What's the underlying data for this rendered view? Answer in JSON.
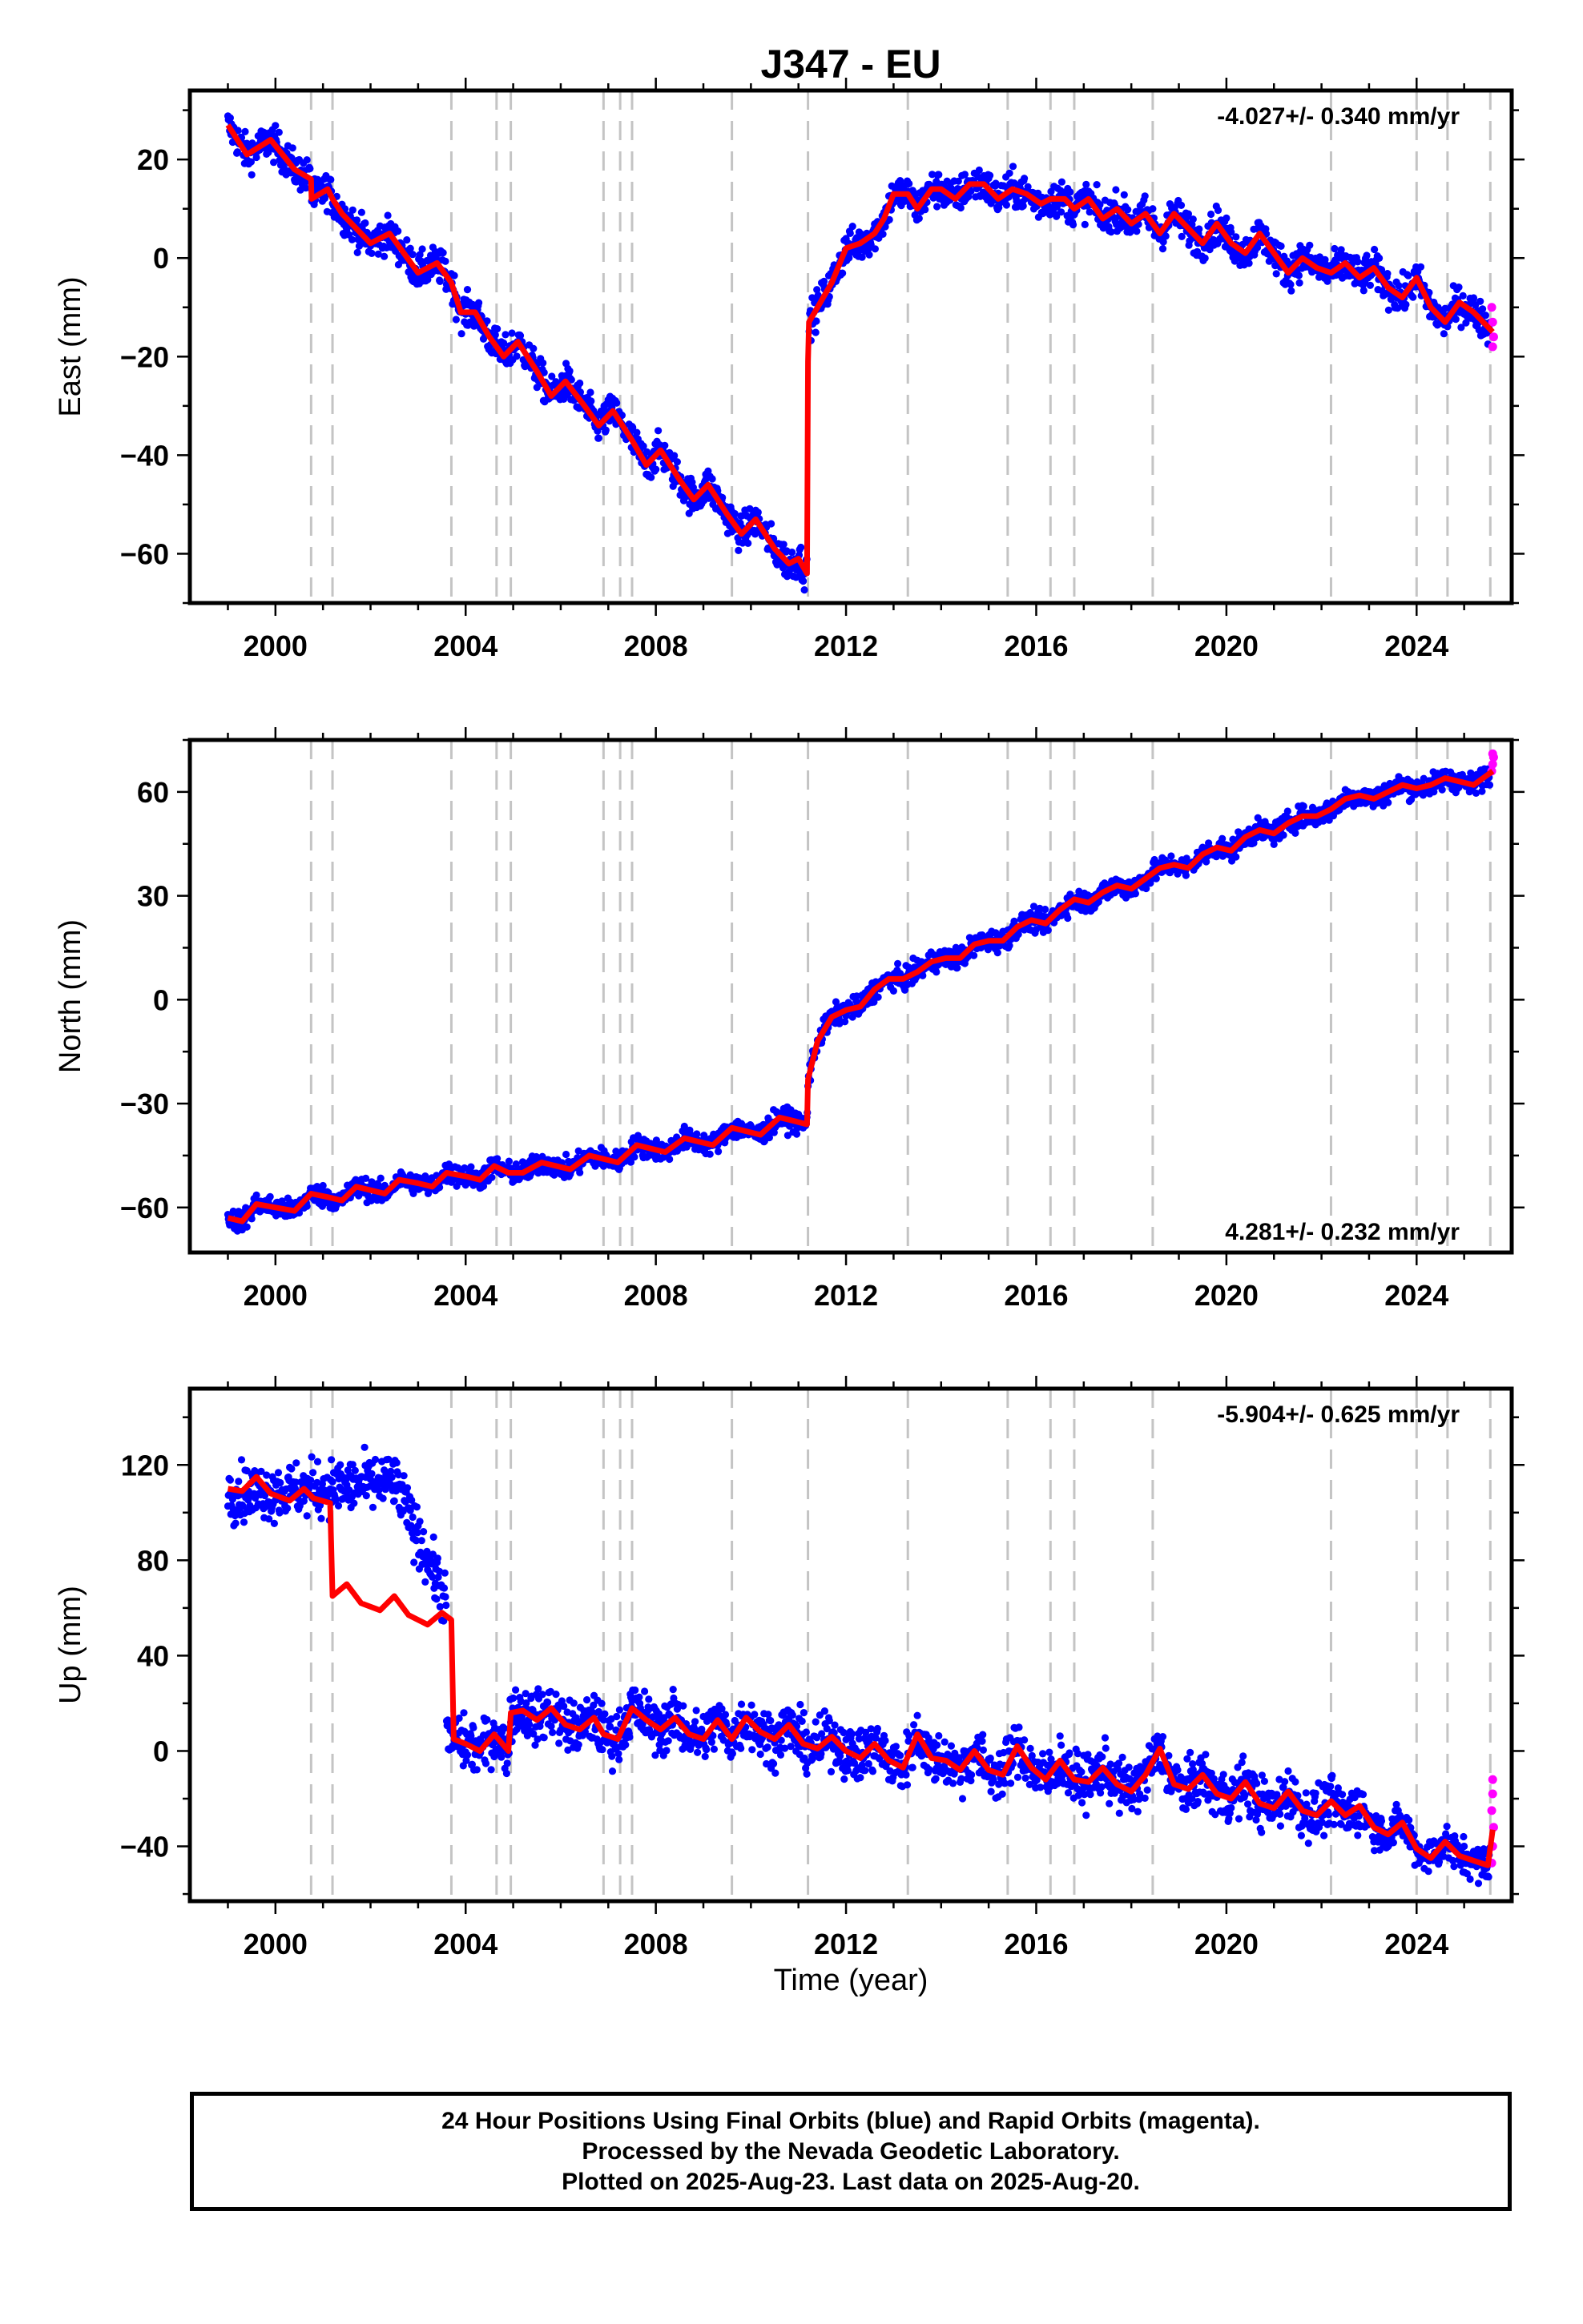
{
  "title": "J347 - EU",
  "caption": [
    "24 Hour Positions Using Final Orbits (blue) and Rapid Orbits (magenta).",
    "Processed by the Nevada Geodetic Laboratory.",
    "Plotted on 2025-Aug-23. Last data on 2025-Aug-20."
  ],
  "colors": {
    "final_orbits": "#0000ff",
    "rapid_orbits": "#ff00ff",
    "model_fit": "#ff0000",
    "equipment_change": "#c4c4c4"
  },
  "x_axis_label": "Time (year)",
  "chart_data": [
    {
      "type": "scatter",
      "name": "east",
      "ylabel": "East (mm)",
      "rate_text": "-4.027+/- 0.340 mm/yr",
      "rate_position": "top-right",
      "xlim": [
        1998.2,
        2026.0
      ],
      "ylim": [
        -70,
        34
      ],
      "xticks": [
        2000,
        2004,
        2008,
        2012,
        2016,
        2020,
        2024
      ],
      "yticks": [
        -60,
        -40,
        -20,
        0,
        20
      ],
      "grid": false,
      "offset_epochs": [
        2000.75,
        2001.2,
        2003.7,
        2004.65,
        2004.95,
        2006.9,
        2007.25,
        2007.5,
        2009.6,
        2011.2,
        2013.3,
        2015.4,
        2016.3,
        2016.8,
        2018.45,
        2022.2,
        2024.0,
        2024.65,
        2025.55
      ],
      "fit_line": [
        [
          1999.0,
          27
        ],
        [
          1999.4,
          21
        ],
        [
          1999.9,
          24
        ],
        [
          2000.4,
          18
        ],
        [
          2000.75,
          16
        ],
        [
          2000.76,
          12
        ],
        [
          2001.1,
          14
        ],
        [
          2001.2,
          12
        ],
        [
          2001.4,
          9
        ],
        [
          2001.7,
          6
        ],
        [
          2002.0,
          3
        ],
        [
          2002.4,
          5
        ],
        [
          2002.7,
          1
        ],
        [
          2003.0,
          -3
        ],
        [
          2003.4,
          -1
        ],
        [
          2003.7,
          -5
        ],
        [
          2003.9,
          -11
        ],
        [
          2004.2,
          -11
        ],
        [
          2004.5,
          -16
        ],
        [
          2004.8,
          -20
        ],
        [
          2005.1,
          -17
        ],
        [
          2005.5,
          -23
        ],
        [
          2005.8,
          -28
        ],
        [
          2006.1,
          -25
        ],
        [
          2006.5,
          -30
        ],
        [
          2006.8,
          -34
        ],
        [
          2007.1,
          -31
        ],
        [
          2007.5,
          -37
        ],
        [
          2007.8,
          -42
        ],
        [
          2008.1,
          -39
        ],
        [
          2008.5,
          -45
        ],
        [
          2008.8,
          -49
        ],
        [
          2009.1,
          -46
        ],
        [
          2009.5,
          -52
        ],
        [
          2009.8,
          -56
        ],
        [
          2010.1,
          -53
        ],
        [
          2010.5,
          -59
        ],
        [
          2010.8,
          -62
        ],
        [
          2011.0,
          -61
        ],
        [
          2011.18,
          -64
        ],
        [
          2011.2,
          -21
        ],
        [
          2011.22,
          -13
        ],
        [
          2011.4,
          -10
        ],
        [
          2011.7,
          -5
        ],
        [
          2012.0,
          2
        ],
        [
          2012.3,
          3
        ],
        [
          2012.6,
          5
        ],
        [
          2012.8,
          8
        ],
        [
          2013.0,
          13
        ],
        [
          2013.3,
          13
        ],
        [
          2013.5,
          10
        ],
        [
          2013.8,
          14
        ],
        [
          2014.0,
          14
        ],
        [
          2014.3,
          12
        ],
        [
          2014.6,
          15
        ],
        [
          2014.9,
          15
        ],
        [
          2015.2,
          12
        ],
        [
          2015.5,
          14
        ],
        [
          2015.8,
          13
        ],
        [
          2016.1,
          11
        ],
        [
          2016.3,
          12
        ],
        [
          2016.6,
          12
        ],
        [
          2016.8,
          10
        ],
        [
          2017.1,
          12
        ],
        [
          2017.4,
          8
        ],
        [
          2017.7,
          10
        ],
        [
          2018.0,
          7
        ],
        [
          2018.3,
          9
        ],
        [
          2018.6,
          5
        ],
        [
          2018.9,
          9
        ],
        [
          2019.2,
          6
        ],
        [
          2019.5,
          3
        ],
        [
          2019.8,
          7
        ],
        [
          2020.1,
          3
        ],
        [
          2020.4,
          1
        ],
        [
          2020.7,
          5
        ],
        [
          2021.0,
          1
        ],
        [
          2021.3,
          -3
        ],
        [
          2021.6,
          0
        ],
        [
          2021.9,
          -2
        ],
        [
          2022.2,
          -3
        ],
        [
          2022.5,
          -1
        ],
        [
          2022.8,
          -4
        ],
        [
          2023.1,
          -2
        ],
        [
          2023.4,
          -6
        ],
        [
          2023.7,
          -8
        ],
        [
          2024.0,
          -4
        ],
        [
          2024.3,
          -10
        ],
        [
          2024.6,
          -13
        ],
        [
          2024.9,
          -9
        ],
        [
          2025.2,
          -11
        ],
        [
          2025.6,
          -15
        ]
      ],
      "scatter_trend": [
        [
          1999.0,
          27
        ],
        [
          2011.18,
          -65
        ],
        [
          2011.22,
          -12
        ],
        [
          2013.0,
          13
        ],
        [
          2014.9,
          15
        ],
        [
          2025.6,
          -15
        ]
      ],
      "scatter_spread": 2.8,
      "rapid_points": [
        [
          2025.58,
          -10
        ],
        [
          2025.6,
          -13
        ],
        [
          2025.62,
          -16
        ],
        [
          2025.6,
          -18
        ]
      ]
    },
    {
      "type": "scatter",
      "name": "north",
      "ylabel": "North (mm)",
      "rate_text": "4.281+/- 0.232 mm/yr",
      "rate_position": "bottom-right",
      "xlim": [
        1998.2,
        2026.0
      ],
      "ylim": [
        -73,
        75
      ],
      "xticks": [
        2000,
        2004,
        2008,
        2012,
        2016,
        2020,
        2024
      ],
      "yticks": [
        -60,
        -30,
        0,
        30,
        60
      ],
      "grid": false,
      "offset_epochs": [
        2000.75,
        2001.2,
        2003.7,
        2004.65,
        2004.95,
        2006.9,
        2007.25,
        2007.5,
        2009.6,
        2011.2,
        2013.3,
        2015.4,
        2016.3,
        2016.8,
        2018.45,
        2022.2,
        2024.0,
        2024.65,
        2025.55
      ],
      "fit_line": [
        [
          1999.0,
          -63
        ],
        [
          1999.3,
          -64
        ],
        [
          1999.6,
          -59
        ],
        [
          2000.0,
          -60
        ],
        [
          2000.4,
          -61
        ],
        [
          2000.75,
          -56
        ],
        [
          2001.1,
          -57
        ],
        [
          2001.4,
          -58
        ],
        [
          2001.7,
          -54
        ],
        [
          2002.0,
          -55
        ],
        [
          2002.3,
          -56
        ],
        [
          2002.6,
          -52
        ],
        [
          2003.0,
          -53
        ],
        [
          2003.3,
          -54
        ],
        [
          2003.6,
          -50
        ],
        [
          2004.0,
          -51
        ],
        [
          2004.3,
          -52
        ],
        [
          2004.6,
          -48
        ],
        [
          2004.9,
          -50
        ],
        [
          2005.2,
          -50
        ],
        [
          2005.6,
          -47
        ],
        [
          2005.9,
          -48
        ],
        [
          2006.2,
          -49
        ],
        [
          2006.6,
          -45
        ],
        [
          2006.9,
          -46
        ],
        [
          2007.2,
          -47
        ],
        [
          2007.6,
          -42
        ],
        [
          2007.9,
          -43
        ],
        [
          2008.2,
          -44
        ],
        [
          2008.6,
          -40
        ],
        [
          2008.9,
          -41
        ],
        [
          2009.2,
          -42
        ],
        [
          2009.6,
          -37
        ],
        [
          2009.9,
          -38
        ],
        [
          2010.2,
          -39
        ],
        [
          2010.6,
          -34
        ],
        [
          2010.9,
          -35
        ],
        [
          2011.18,
          -36
        ],
        [
          2011.2,
          -23
        ],
        [
          2011.4,
          -12
        ],
        [
          2011.7,
          -5
        ],
        [
          2012.0,
          -3
        ],
        [
          2012.3,
          -2
        ],
        [
          2012.6,
          3
        ],
        [
          2012.9,
          6
        ],
        [
          2013.2,
          6
        ],
        [
          2013.5,
          8
        ],
        [
          2013.8,
          11
        ],
        [
          2014.1,
          12
        ],
        [
          2014.4,
          12
        ],
        [
          2014.7,
          16
        ],
        [
          2015.0,
          17
        ],
        [
          2015.3,
          17
        ],
        [
          2015.6,
          21
        ],
        [
          2015.9,
          23
        ],
        [
          2016.2,
          22
        ],
        [
          2016.5,
          26
        ],
        [
          2016.8,
          29
        ],
        [
          2017.1,
          28
        ],
        [
          2017.4,
          31
        ],
        [
          2017.7,
          33
        ],
        [
          2018.0,
          32
        ],
        [
          2018.3,
          35
        ],
        [
          2018.6,
          38
        ],
        [
          2018.9,
          39
        ],
        [
          2019.2,
          38
        ],
        [
          2019.5,
          42
        ],
        [
          2019.8,
          44
        ],
        [
          2020.1,
          43
        ],
        [
          2020.4,
          47
        ],
        [
          2020.7,
          49
        ],
        [
          2021.0,
          48
        ],
        [
          2021.3,
          51
        ],
        [
          2021.6,
          53
        ],
        [
          2021.9,
          53
        ],
        [
          2022.2,
          55
        ],
        [
          2022.5,
          58
        ],
        [
          2022.8,
          59
        ],
        [
          2023.1,
          58
        ],
        [
          2023.4,
          60
        ],
        [
          2023.7,
          62
        ],
        [
          2024.0,
          61
        ],
        [
          2024.3,
          62
        ],
        [
          2024.6,
          64
        ],
        [
          2024.9,
          63
        ],
        [
          2025.2,
          62
        ],
        [
          2025.6,
          66
        ]
      ],
      "scatter_trend": [
        [
          1999.0,
          -61
        ],
        [
          2011.18,
          -35
        ],
        [
          2011.2,
          -22
        ],
        [
          2011.6,
          -5
        ],
        [
          2025.6,
          65
        ]
      ],
      "scatter_spread": 2.4,
      "rapid_points": [
        [
          2025.58,
          66
        ],
        [
          2025.6,
          68
        ],
        [
          2025.62,
          70
        ],
        [
          2025.6,
          71
        ]
      ]
    },
    {
      "type": "scatter",
      "name": "up",
      "ylabel": "Up (mm)",
      "rate_text": "-5.904+/- 0.625 mm/yr",
      "rate_position": "top-right",
      "xlim": [
        1998.2,
        2026.0
      ],
      "ylim": [
        -63,
        152
      ],
      "xticks": [
        2000,
        2004,
        2008,
        2012,
        2016,
        2020,
        2024
      ],
      "yticks": [
        -40,
        0,
        40,
        80,
        120
      ],
      "grid": false,
      "offset_epochs": [
        2000.75,
        2001.2,
        2003.7,
        2004.65,
        2004.95,
        2006.9,
        2007.25,
        2007.5,
        2009.6,
        2011.2,
        2013.3,
        2015.4,
        2016.3,
        2016.8,
        2018.45,
        2022.2,
        2024.0,
        2024.65,
        2025.55
      ],
      "fit_line": [
        [
          1999.0,
          110
        ],
        [
          1999.3,
          109
        ],
        [
          1999.6,
          115
        ],
        [
          1999.9,
          108
        ],
        [
          2000.3,
          105
        ],
        [
          2000.6,
          110
        ],
        [
          2000.8,
          106
        ],
        [
          2001.15,
          104
        ],
        [
          2001.2,
          65
        ],
        [
          2001.5,
          70
        ],
        [
          2001.8,
          62
        ],
        [
          2002.2,
          59
        ],
        [
          2002.5,
          65
        ],
        [
          2002.8,
          57
        ],
        [
          2003.2,
          53
        ],
        [
          2003.5,
          58
        ],
        [
          2003.7,
          55
        ],
        [
          2003.75,
          5
        ],
        [
          2004.0,
          3
        ],
        [
          2004.3,
          0
        ],
        [
          2004.6,
          7
        ],
        [
          2004.9,
          0
        ],
        [
          2004.95,
          16
        ],
        [
          2005.2,
          17
        ],
        [
          2005.5,
          13
        ],
        [
          2005.8,
          18
        ],
        [
          2006.1,
          11
        ],
        [
          2006.4,
          9
        ],
        [
          2006.7,
          14
        ],
        [
          2006.9,
          7
        ],
        [
          2007.2,
          5
        ],
        [
          2007.5,
          18
        ],
        [
          2007.8,
          13
        ],
        [
          2008.1,
          9
        ],
        [
          2008.4,
          14
        ],
        [
          2008.7,
          7
        ],
        [
          2009.0,
          5
        ],
        [
          2009.3,
          13
        ],
        [
          2009.6,
          5
        ],
        [
          2009.9,
          14
        ],
        [
          2010.2,
          8
        ],
        [
          2010.5,
          5
        ],
        [
          2010.8,
          11
        ],
        [
          2011.1,
          3
        ],
        [
          2011.4,
          1
        ],
        [
          2011.7,
          6
        ],
        [
          2012.0,
          0
        ],
        [
          2012.3,
          -3
        ],
        [
          2012.6,
          3
        ],
        [
          2012.9,
          -4
        ],
        [
          2013.2,
          -7
        ],
        [
          2013.5,
          7
        ],
        [
          2013.8,
          -3
        ],
        [
          2014.1,
          -4
        ],
        [
          2014.4,
          -8
        ],
        [
          2014.7,
          0
        ],
        [
          2015.0,
          -8
        ],
        [
          2015.3,
          -10
        ],
        [
          2015.6,
          2
        ],
        [
          2015.9,
          -7
        ],
        [
          2016.2,
          -12
        ],
        [
          2016.5,
          -4
        ],
        [
          2016.8,
          -12
        ],
        [
          2017.1,
          -13
        ],
        [
          2017.4,
          -7
        ],
        [
          2017.7,
          -14
        ],
        [
          2018.0,
          -17
        ],
        [
          2018.3,
          -10
        ],
        [
          2018.6,
          1
        ],
        [
          2018.9,
          -14
        ],
        [
          2019.2,
          -16
        ],
        [
          2019.5,
          -10
        ],
        [
          2019.8,
          -18
        ],
        [
          2020.1,
          -20
        ],
        [
          2020.4,
          -13
        ],
        [
          2020.7,
          -22
        ],
        [
          2021.0,
          -24
        ],
        [
          2021.3,
          -17
        ],
        [
          2021.6,
          -25
        ],
        [
          2021.9,
          -27
        ],
        [
          2022.2,
          -21
        ],
        [
          2022.5,
          -27
        ],
        [
          2022.8,
          -23
        ],
        [
          2023.1,
          -32
        ],
        [
          2023.4,
          -35
        ],
        [
          2023.7,
          -30
        ],
        [
          2024.0,
          -41
        ],
        [
          2024.3,
          -45
        ],
        [
          2024.6,
          -38
        ],
        [
          2024.9,
          -44
        ],
        [
          2025.2,
          -46
        ],
        [
          2025.5,
          -48
        ],
        [
          2025.6,
          -33
        ]
      ],
      "scatter_trend": [
        [
          1999.0,
          108
        ],
        [
          2003.0,
          80
        ],
        [
          2003.45,
          60
        ],
        [
          2003.0,
          2
        ],
        [
          2011.1,
          3
        ],
        [
          2022.9,
          -27
        ],
        [
          2023.0,
          -40
        ],
        [
          2025.6,
          -43
        ]
      ],
      "scatter_spread": 8.5,
      "rapid_points": [
        [
          2025.6,
          -12
        ],
        [
          2025.6,
          -18
        ],
        [
          2025.58,
          -25
        ],
        [
          2025.62,
          -32
        ],
        [
          2025.6,
          -40
        ],
        [
          2025.58,
          -47
        ]
      ]
    }
  ]
}
